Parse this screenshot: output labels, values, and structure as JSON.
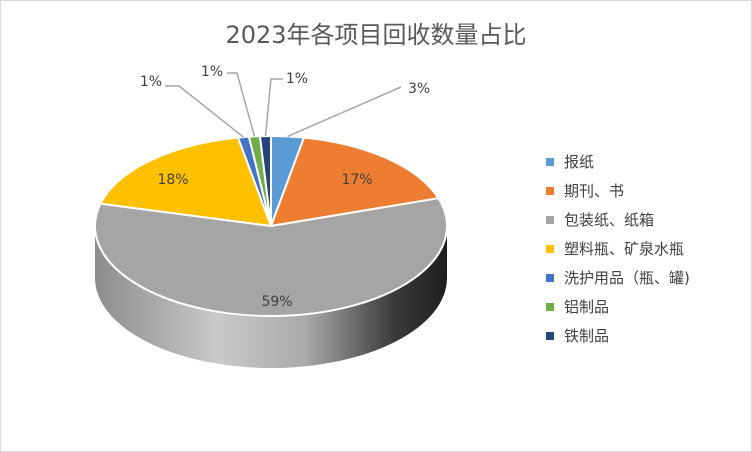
{
  "chart_data": {
    "type": "pie",
    "title": "2023年各项目回收数量占比",
    "categories": [
      "报纸",
      "期刊、书",
      "包装纸、纸箱",
      "塑料瓶、矿泉水瓶",
      "洗护用品（瓶、罐)",
      "铝制品",
      "铁制品"
    ],
    "values": [
      3,
      17,
      59,
      18,
      1,
      1,
      1
    ],
    "data_labels": [
      "3%",
      "17%",
      "59%",
      "18%",
      "1%",
      "1%",
      "1%"
    ],
    "colors": [
      "#5B9BD5",
      "#ED7D31",
      "#A5A5A5",
      "#FFC000",
      "#4472C4",
      "#70AD47",
      "#264478"
    ],
    "legend_position": "right",
    "style": "3d"
  }
}
